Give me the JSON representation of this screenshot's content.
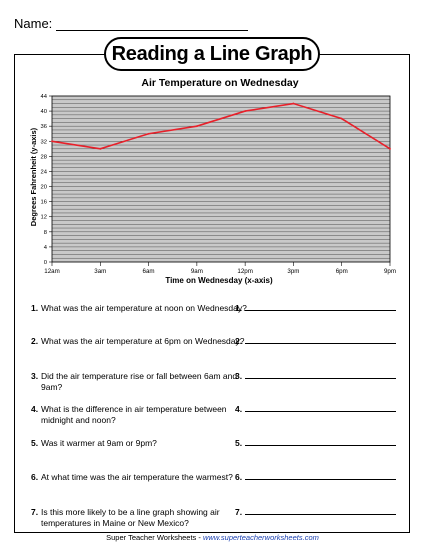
{
  "header": {
    "name_label": "Name:"
  },
  "title": "Reading a Line Graph",
  "chart_data": {
    "type": "line",
    "title": "Air Temperature on Wednesday",
    "xlabel": "Time on Wednesday (x-axis)",
    "ylabel": "Degrees Fahrenheit (y-axis)",
    "categories": [
      "12am",
      "3am",
      "6am",
      "9am",
      "12pm",
      "3pm",
      "6pm",
      "9pm"
    ],
    "values": [
      32,
      30,
      34,
      36,
      40,
      42,
      38,
      30
    ],
    "yticks": [
      0,
      4,
      8,
      12,
      16,
      20,
      24,
      28,
      32,
      36,
      40,
      44
    ],
    "ylim": [
      0,
      44
    ],
    "grid": true,
    "line_color": "#e8202a",
    "plot_background": "#c9c9c9"
  },
  "questions": [
    {
      "number": "1.",
      "text": "What was the air temperature at noon on Wednesday?",
      "answer_label": "1."
    },
    {
      "number": "2.",
      "text": "What was the air temperature at 6pm on Wednesday?",
      "answer_label": "2."
    },
    {
      "number": "3.",
      "text": "Did the air temperature rise or fall between 6am and 9am?",
      "answer_label": "3."
    },
    {
      "number": "4.",
      "text": "What is the difference in air temperature between midnight and noon?",
      "answer_label": "4."
    },
    {
      "number": "5.",
      "text": "Was it warmer at 9am or 9pm?",
      "answer_label": "5."
    },
    {
      "number": "6.",
      "text": "At what time was the air temperature the warmest?",
      "answer_label": "6."
    },
    {
      "number": "7.",
      "text": "Is this more likely to be a line graph showing air temperatures in Maine or New Mexico?",
      "answer_label": "7."
    }
  ],
  "footer": {
    "brand": "Super Teacher Worksheets",
    "separator": " - ",
    "url": "www.superteacherworksheets.com"
  }
}
